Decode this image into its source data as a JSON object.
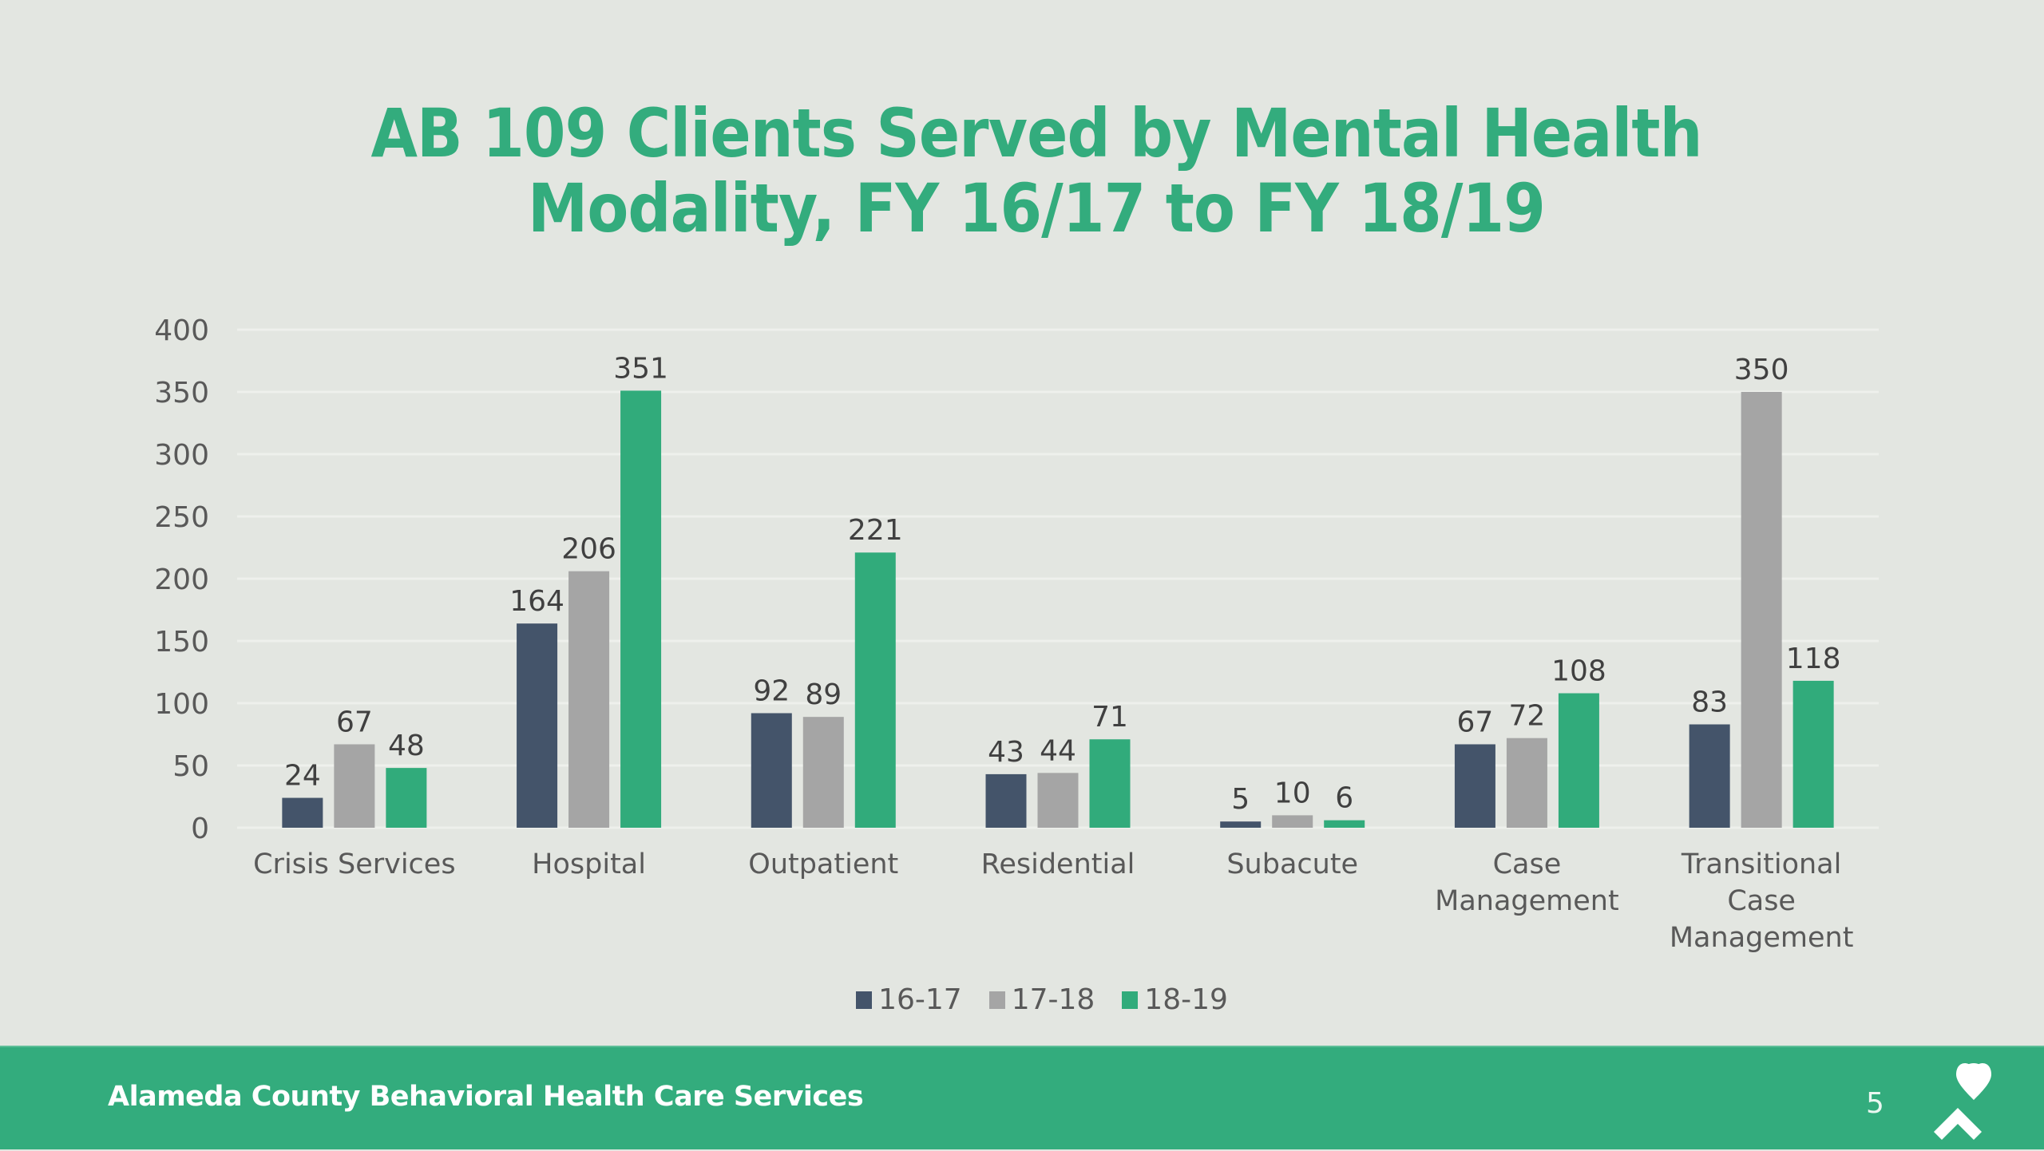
{
  "slide": {
    "title_lines": [
      "AB 109 Clients Served by Mental Health",
      "Modality, FY 16/17 to FY 18/19"
    ],
    "footer_org": "Alameda County Behavioral Health Care Services",
    "page_number": "5",
    "logo_icon": "heart-chevron-logo-icon"
  },
  "colors": {
    "background": "#E3E6E1",
    "accent_green": "#33AC7D",
    "series_16_17": "#44546A",
    "series_17_18": "#A5A5A5",
    "series_18_19": "#31AB7B",
    "text": "#595959"
  },
  "chart_data": {
    "type": "bar",
    "title": "AB 109 Clients Served by Mental Health Modality, FY 16/17 to FY 18/19",
    "xlabel": "",
    "ylabel": "",
    "categories": [
      [
        "Crisis Services"
      ],
      [
        "Hospital"
      ],
      [
        "Outpatient"
      ],
      [
        "Residential"
      ],
      [
        "Subacute"
      ],
      [
        "Case",
        "Management"
      ],
      [
        "Transitional",
        "Case",
        "Management"
      ]
    ],
    "series": [
      {
        "name": "16-17",
        "color": "#44546A",
        "values": [
          24,
          164,
          92,
          43,
          5,
          67,
          83
        ]
      },
      {
        "name": "17-18",
        "color": "#A5A5A5",
        "values": [
          67,
          206,
          89,
          44,
          10,
          72,
          350
        ]
      },
      {
        "name": "18-19",
        "color": "#31AB7B",
        "values": [
          48,
          351,
          221,
          71,
          6,
          108,
          118
        ]
      }
    ],
    "ylim": [
      0,
      400
    ],
    "yticks": [
      0,
      50,
      100,
      150,
      200,
      250,
      300,
      350,
      400
    ],
    "grid": true,
    "data_labels": true,
    "legend": {
      "position": "bottom",
      "entries": [
        "16-17",
        "17-18",
        "18-19"
      ]
    }
  }
}
